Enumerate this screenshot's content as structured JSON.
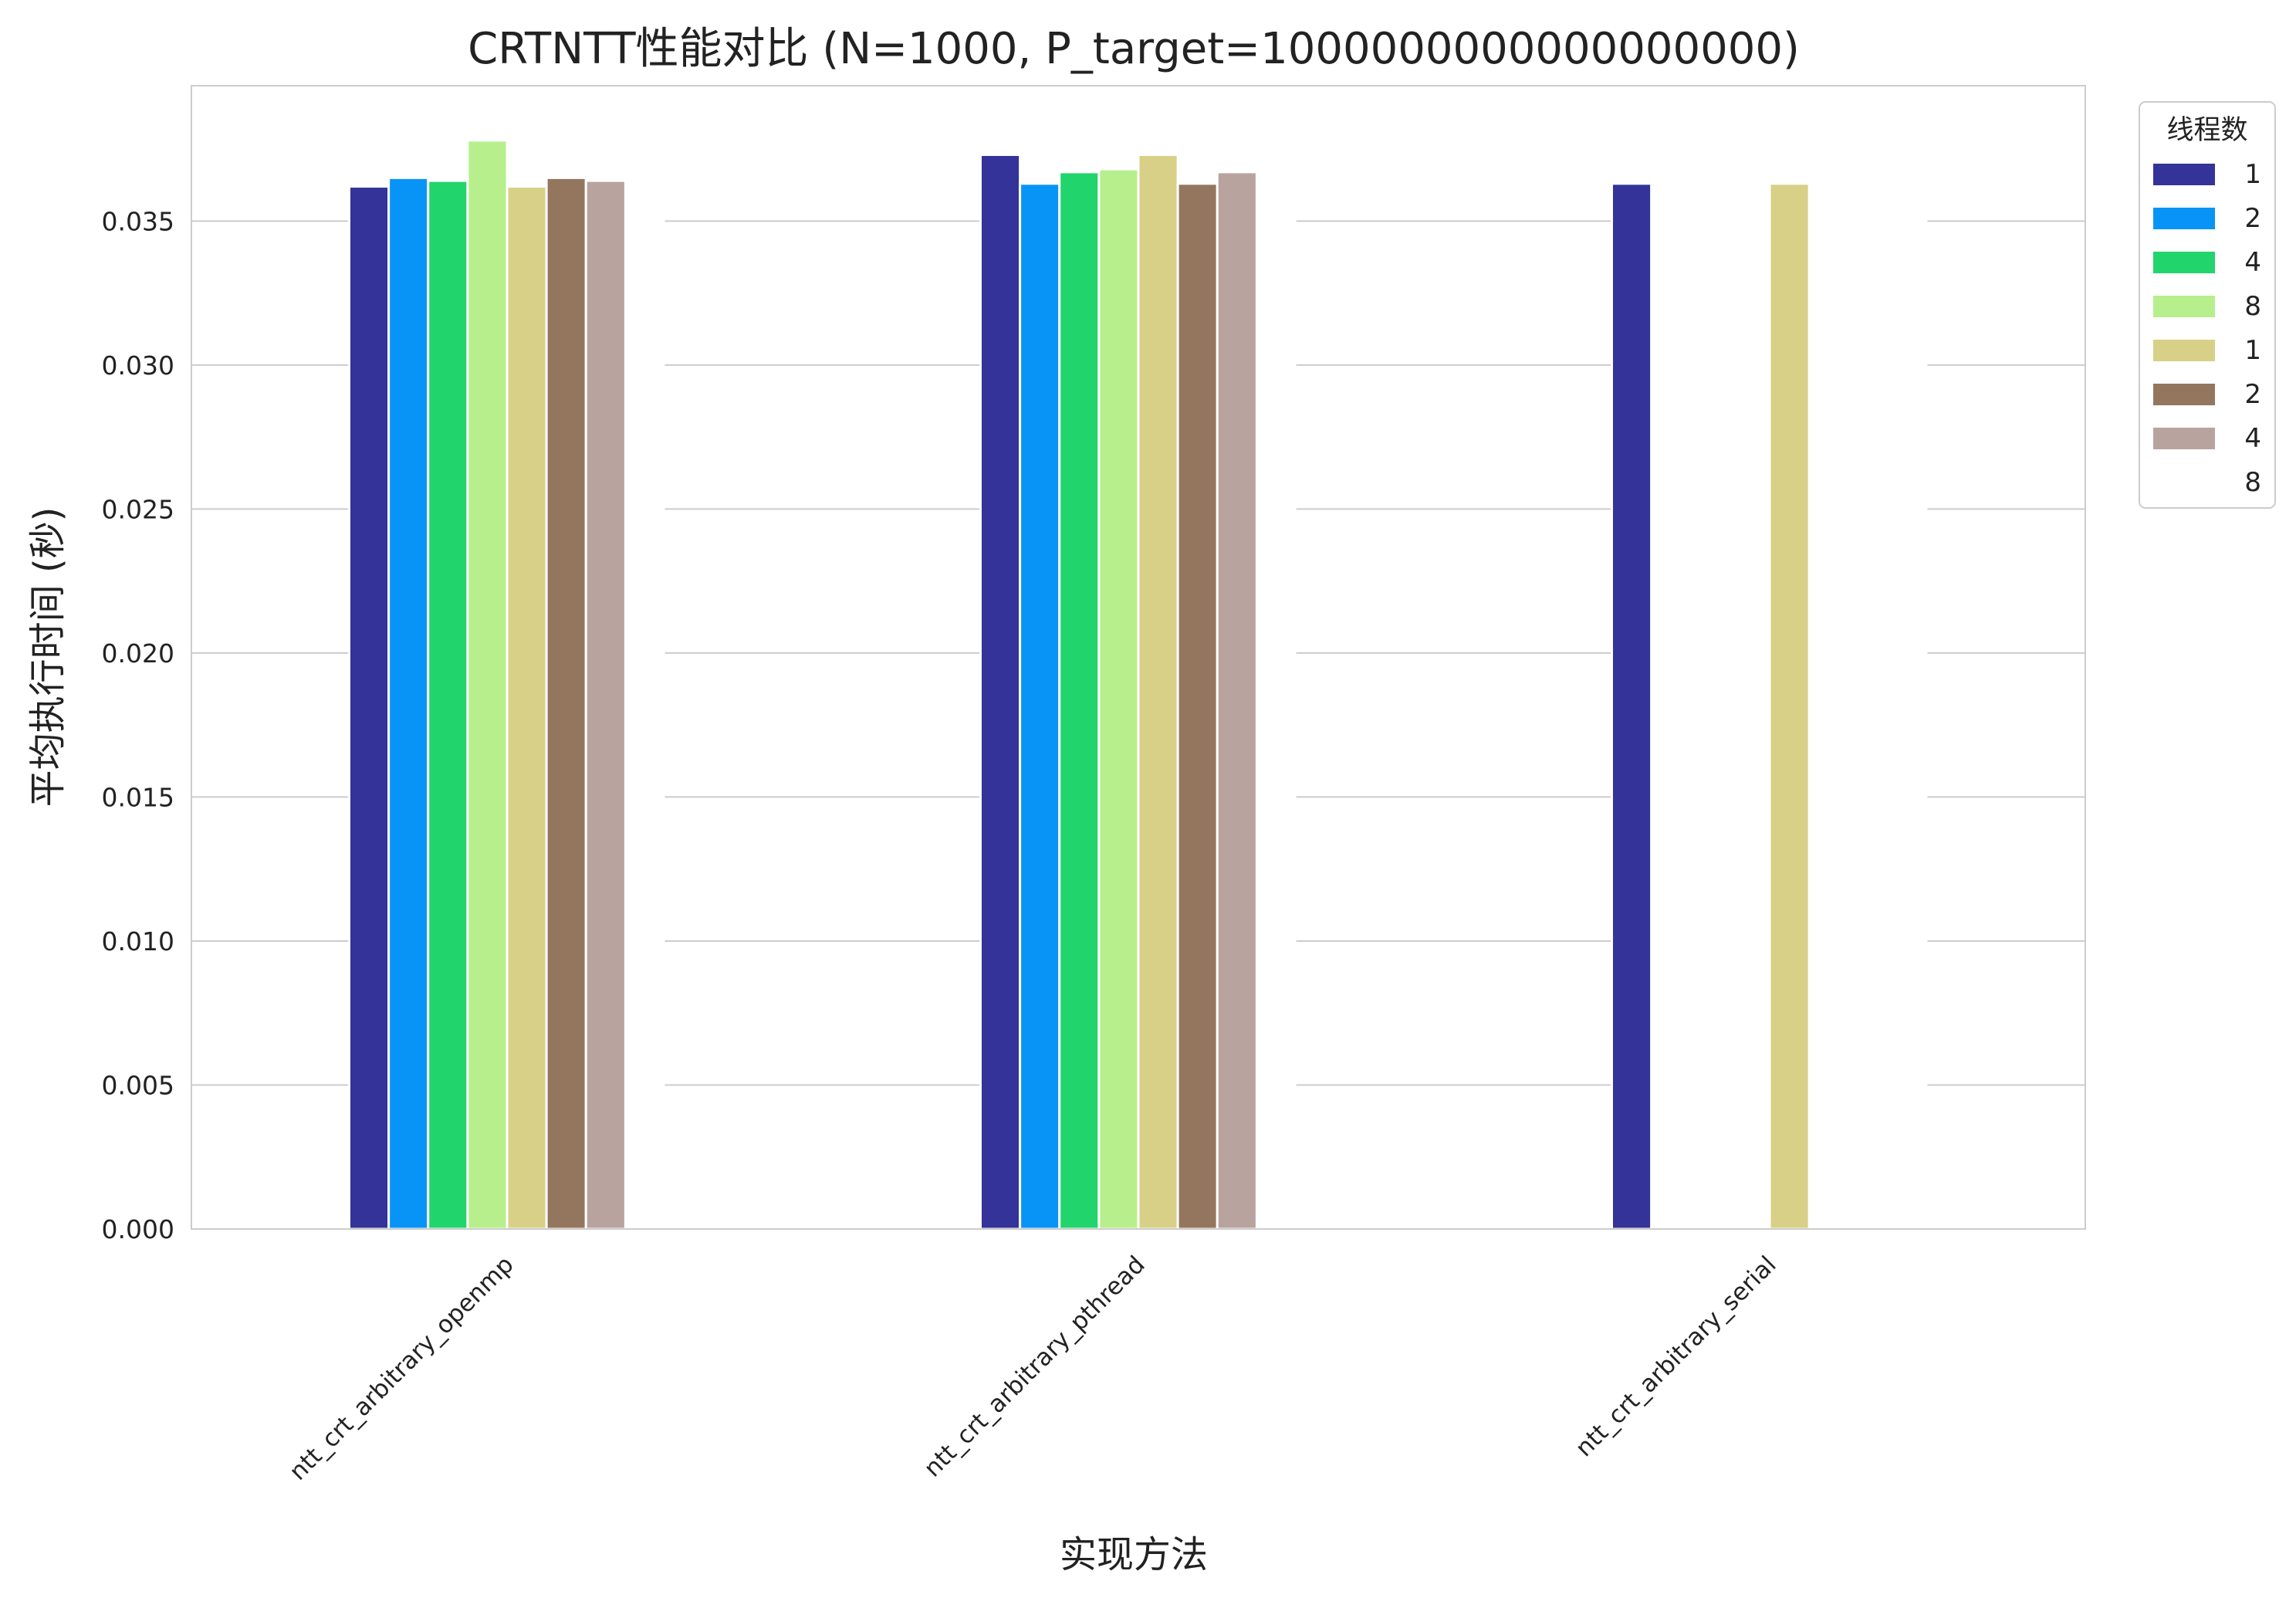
{
  "chart_data": {
    "type": "bar",
    "title": "CRTNTT性能对比 (N=1000, P_target=1000000000000000000)",
    "xlabel": "实现方法",
    "ylabel": "平均执行时间 (秒)",
    "categories": [
      "ntt_crt_arbitrary_openmp",
      "ntt_crt_arbitrary_pthread",
      "ntt_crt_arbitrary_serial"
    ],
    "ylim": [
      0,
      0.0397
    ],
    "yticks": [
      "0.000",
      "0.005",
      "0.010",
      "0.015",
      "0.020",
      "0.025",
      "0.030",
      "0.035"
    ],
    "grid": true,
    "legend_title": "线程数",
    "legend_position": "upper right, outside plot",
    "series": [
      {
        "name": "1",
        "color": "#343399",
        "values": [
          0.0362,
          0.0373,
          0.0363
        ]
      },
      {
        "name": "2",
        "color": "#0894f6",
        "values": [
          0.0365,
          0.0363,
          null
        ]
      },
      {
        "name": "4",
        "color": "#22d46c",
        "values": [
          0.0364,
          0.0367,
          null
        ]
      },
      {
        "name": "8",
        "color": "#b7ef8c",
        "values": [
          0.0378,
          0.0368,
          null
        ]
      },
      {
        "name": "1",
        "color": "#d8d087",
        "values": [
          0.0362,
          0.0373,
          0.0363
        ]
      },
      {
        "name": "2",
        "color": "#94765e",
        "values": [
          0.0365,
          0.0363,
          null
        ]
      },
      {
        "name": "4",
        "color": "#b8a39e",
        "values": [
          0.0364,
          0.0367,
          null
        ]
      },
      {
        "name": "8",
        "color": "#ffffff",
        "values": [
          null,
          null,
          null
        ]
      }
    ]
  }
}
